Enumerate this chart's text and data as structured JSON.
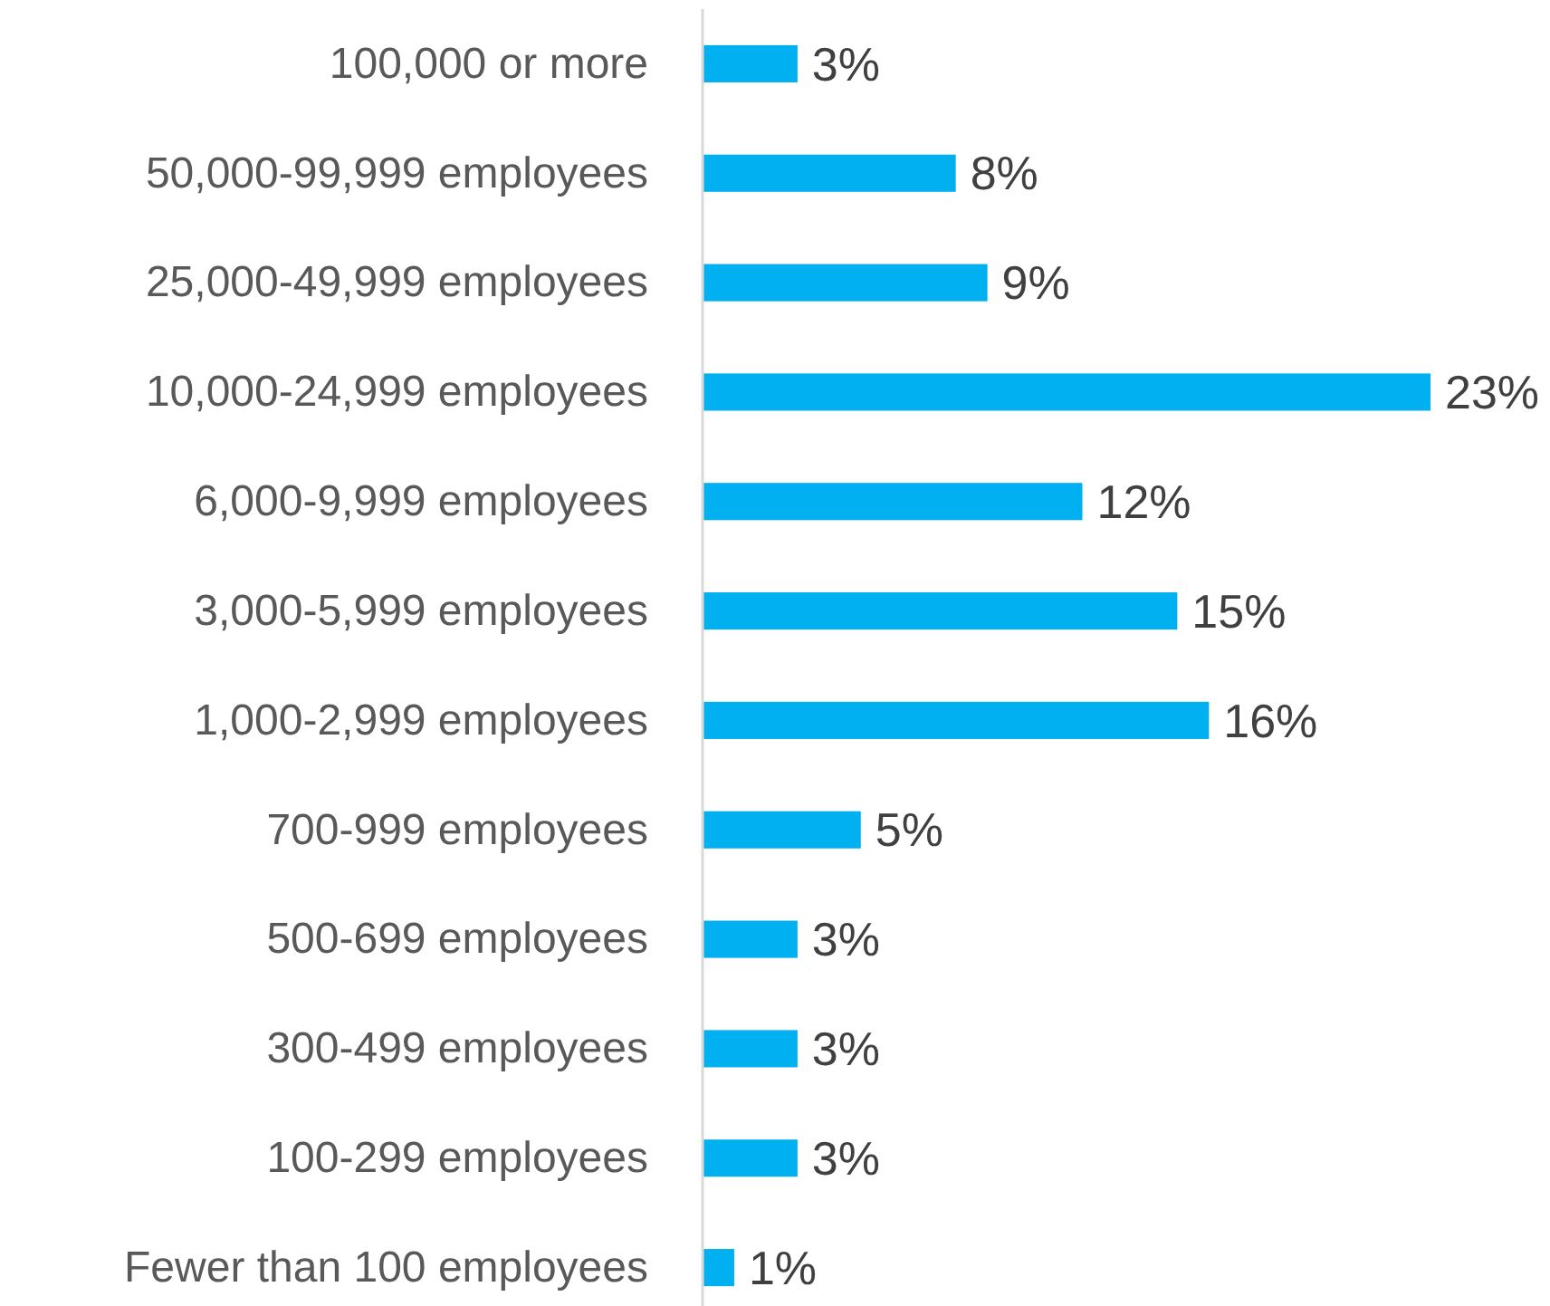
{
  "chart_data": {
    "type": "bar",
    "orientation": "horizontal",
    "categories": [
      "100,000 or more",
      "50,000-99,999 employees",
      "25,000-49,999 employees",
      "10,000-24,999 employees",
      "6,000-9,999 employees",
      "3,000-5,999 employees",
      "1,000-2,999 employees",
      "700-999 employees",
      "500-699 employees",
      "300-499 employees",
      "100-299 employees",
      "Fewer than 100 employees"
    ],
    "values": [
      3,
      8,
      9,
      23,
      12,
      15,
      16,
      5,
      3,
      3,
      3,
      1
    ],
    "value_labels": [
      "3%",
      "8%",
      "9%",
      "23%",
      "12%",
      "15%",
      "16%",
      "5%",
      "3%",
      "3%",
      "3%",
      "1%"
    ],
    "color": "#00b0f0"
  }
}
